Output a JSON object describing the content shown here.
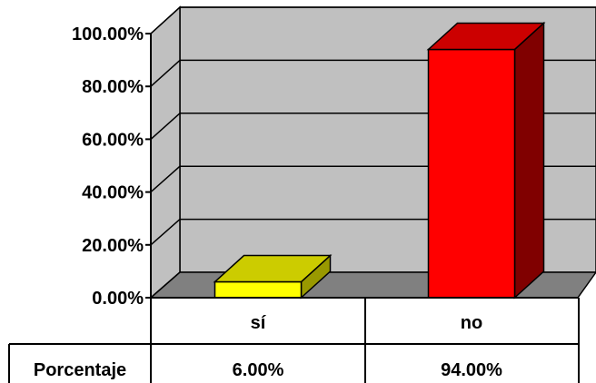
{
  "chart_data": {
    "type": "bar",
    "categories": [
      "sí",
      "no"
    ],
    "series": [
      {
        "values": [
          6.0,
          94.0
        ]
      }
    ],
    "ylim": [
      0,
      100
    ],
    "ytick_values": [
      0,
      20,
      40,
      60,
      80,
      100
    ],
    "ytick_labels": [
      "0.00%",
      "20.00%",
      "40.00%",
      "60.00%",
      "80.00%",
      "100.00%"
    ],
    "grid": true,
    "three_d": true,
    "colors": {
      "bar_front": [
        "#ffff00",
        "#ff0000"
      ],
      "bar_side": [
        "#999900",
        "#800000"
      ],
      "bar_top": [
        "#cccc00",
        "#cc0000"
      ],
      "wall": "#c0c0c0",
      "floor": "#808080",
      "gridline": "#000000"
    },
    "data_table": {
      "row_label": "Porcentaje",
      "cells": [
        "6.00%",
        "94.00%"
      ]
    }
  }
}
